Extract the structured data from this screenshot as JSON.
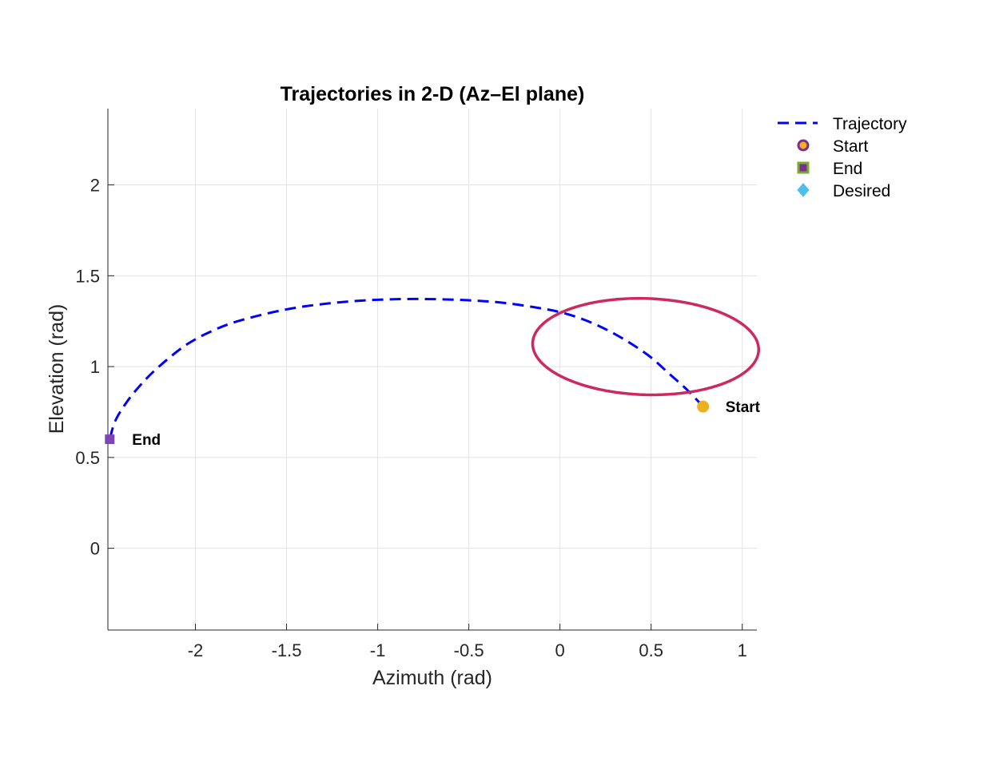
{
  "chart_data": {
    "type": "line",
    "title": "Trajectories in 2-D (Az–El plane)",
    "xlabel": "Azimuth (rad)",
    "ylabel": "Elevation (rad)",
    "xlim": [
      -2.48,
      1.08
    ],
    "ylim": [
      -0.45,
      2.42
    ],
    "xticks": [
      -2,
      -1.5,
      -1,
      -0.5,
      0,
      0.5,
      1
    ],
    "xtick_labels": [
      "-2",
      "-1.5",
      "-1",
      "-0.5",
      "0",
      "0.5",
      "1"
    ],
    "yticks": [
      0,
      0.5,
      1,
      1.5,
      2
    ],
    "ytick_labels": [
      "0",
      "0.5",
      "1",
      "1.5",
      "2"
    ],
    "grid": true,
    "legend_position": "outside-top-right",
    "series": [
      {
        "name": "Trajectory",
        "style": "dashed",
        "color": "#0000ff",
        "x": [
          0.785,
          0.7,
          0.6,
          0.5,
          0.4,
          0.3,
          0.2,
          0.1,
          0.0,
          -0.1,
          -0.3,
          -0.5,
          -0.75,
          -1.0,
          -1.25,
          -1.5,
          -1.75,
          -1.9,
          -2.05,
          -2.2,
          -2.3,
          -2.38,
          -2.44,
          -2.47
        ],
        "y": [
          0.78,
          0.87,
          0.96,
          1.05,
          1.12,
          1.18,
          1.23,
          1.27,
          1.3,
          1.32,
          1.35,
          1.365,
          1.372,
          1.368,
          1.35,
          1.315,
          1.255,
          1.2,
          1.12,
          1.0,
          0.9,
          0.8,
          0.7,
          0.6
        ]
      },
      {
        "name": "Desired",
        "style": "solid",
        "color": "#cc2a5f",
        "center": [
          0.47,
          1.11
        ],
        "x_radius": 0.62,
        "y_radius": 0.265,
        "skew": 0.08
      }
    ],
    "markers": [
      {
        "name": "Start",
        "x": 0.785,
        "y": 0.78,
        "label": "Start",
        "color": "#edb120",
        "shape": "circle"
      },
      {
        "name": "End",
        "x": -2.47,
        "y": 0.6,
        "label": "End",
        "color": "#7e45b8",
        "shape": "square"
      }
    ],
    "legend": [
      {
        "label": "Trajectory",
        "kind": "dashed-line",
        "color": "#0000ff"
      },
      {
        "label": "Start",
        "kind": "circle",
        "color": "#edb120",
        "edge": "#7e2f8e"
      },
      {
        "label": "End",
        "kind": "square",
        "color": "#7e2f8e",
        "edge": "#77ac30"
      },
      {
        "label": "Desired",
        "kind": "diamond",
        "color": "#4dbeee",
        "edge": "#4dbeee"
      }
    ]
  }
}
